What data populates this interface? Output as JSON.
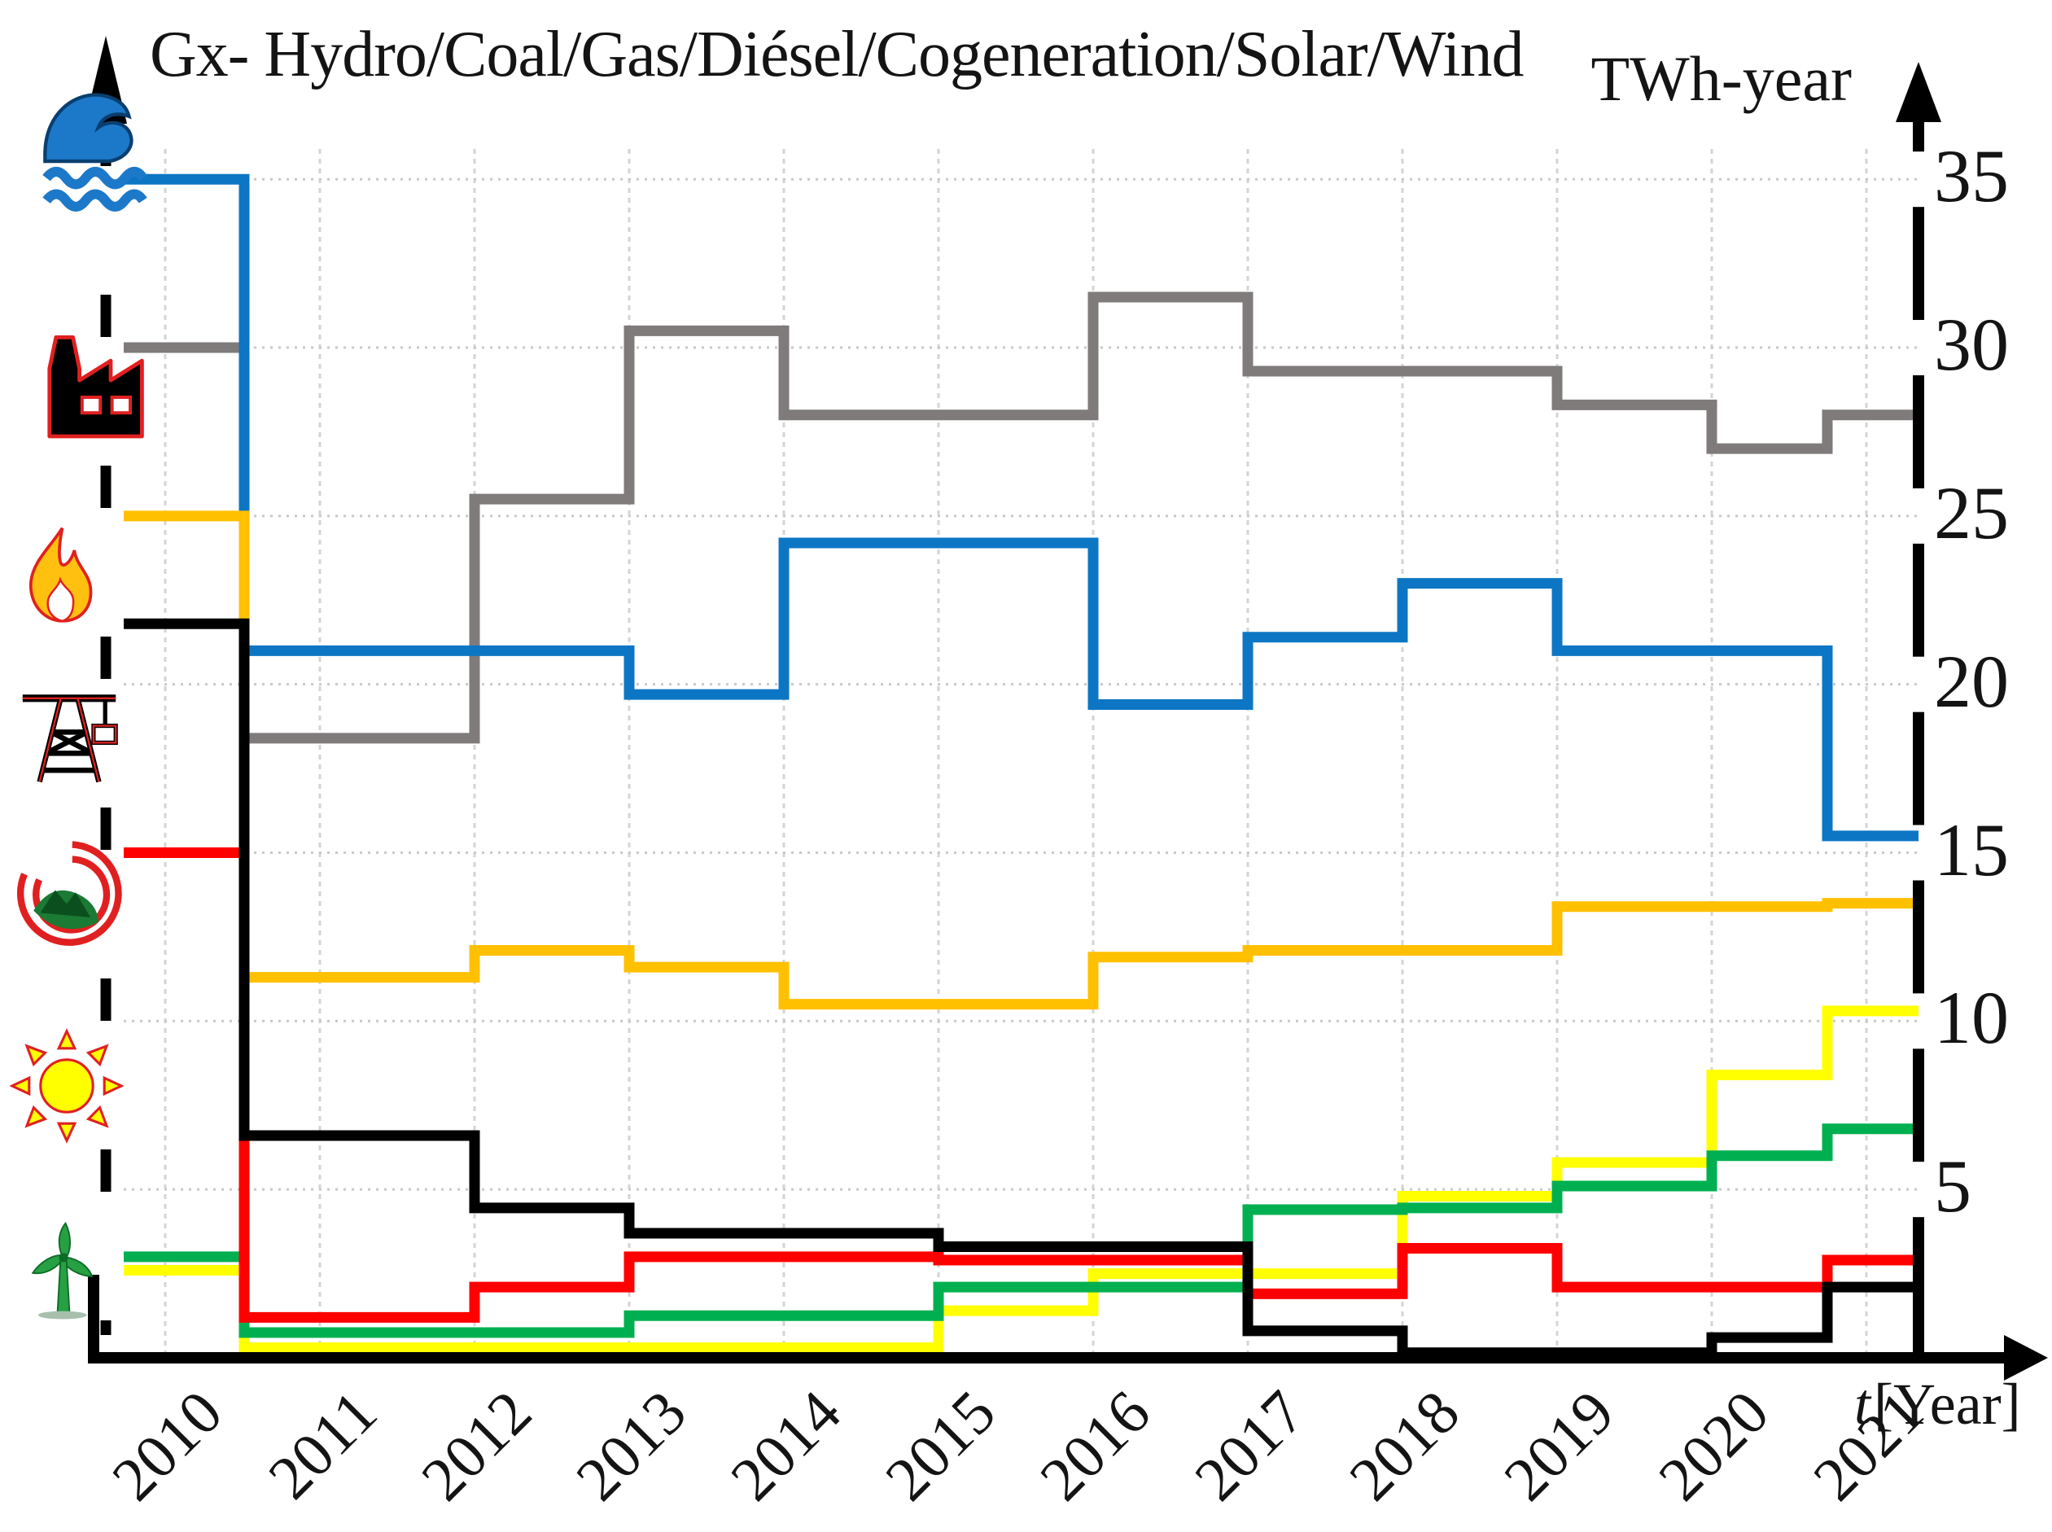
{
  "header": {
    "title": "Gx- Hydro/Coal/Gas/Diésel/Cogeneration/Solar/Wind",
    "y_unit": "TWh-year"
  },
  "x_axis": {
    "label_var": "t",
    "label_unit": "[Year]",
    "years": [
      "2010",
      "2011",
      "2012",
      "2013",
      "2014",
      "2015",
      "2016",
      "2017",
      "2018",
      "2019",
      "2020",
      "2021"
    ]
  },
  "y_axis": {
    "tick_labels": [
      "35",
      "30",
      "25",
      "20",
      "15",
      "10",
      "5"
    ]
  },
  "legend_icons": [
    {
      "name": "wave-icon",
      "series": "Hydro"
    },
    {
      "name": "factory-icon",
      "series": "Coal"
    },
    {
      "name": "flame-icon",
      "series": "Gas"
    },
    {
      "name": "derrick-icon",
      "series": "Diésel"
    },
    {
      "name": "cogeneration-icon",
      "series": "Cogeneration"
    },
    {
      "name": "sun-icon",
      "series": "Solar"
    },
    {
      "name": "wind-turbine-icon",
      "series": "Wind"
    }
  ],
  "chart_data": {
    "type": "line",
    "step": true,
    "title": "Gx- Hydro/Coal/Gas/Diésel/Cogeneration/Solar/Wind",
    "xlabel": "t[Year]",
    "ylabel": "TWh-year",
    "categories": [
      2010,
      2011,
      2012,
      2013,
      2014,
      2015,
      2016,
      2017,
      2018,
      2019,
      2020,
      2021
    ],
    "ylim": [
      0,
      36.5
    ],
    "yticks": [
      5,
      10,
      15,
      20,
      25,
      30,
      35
    ],
    "grid": true,
    "legend_position": "left-icon-column",
    "series": [
      {
        "name": "Hydro",
        "color": "#0d76c4",
        "values": [
          35.0,
          21.0,
          21.0,
          19.7,
          24.2,
          24.2,
          19.4,
          21.4,
          23.0,
          21.0,
          21.0,
          15.5
        ]
      },
      {
        "name": "Coal",
        "color": "#7f7b7b",
        "values": [
          30.0,
          18.4,
          25.5,
          30.5,
          28.0,
          28.0,
          31.5,
          29.3,
          29.3,
          28.3,
          27.0,
          28.0
        ]
      },
      {
        "name": "Gas",
        "color": "#ffc000",
        "values": [
          25.0,
          11.3,
          12.1,
          11.6,
          10.5,
          10.5,
          11.9,
          12.1,
          12.1,
          13.4,
          13.4,
          13.5
        ]
      },
      {
        "name": "Diésel",
        "color": "#000000",
        "values": [
          21.8,
          6.6,
          4.45,
          3.7,
          3.7,
          3.3,
          3.3,
          0.8,
          0.15,
          0.15,
          0.6,
          2.1
        ]
      },
      {
        "name": "Cogeneration",
        "color": "#ff0000",
        "values": [
          15.0,
          1.2,
          2.1,
          3.0,
          3.0,
          2.9,
          2.9,
          1.9,
          3.25,
          2.1,
          2.1,
          2.9
        ]
      },
      {
        "name": "Solar",
        "color": "#ffff00",
        "values": [
          2.6,
          0.3,
          0.3,
          0.3,
          0.3,
          1.4,
          2.5,
          2.5,
          4.8,
          5.8,
          8.4,
          10.3
        ]
      },
      {
        "name": "Wind",
        "color": "#00b050",
        "values": [
          3.0,
          0.75,
          0.75,
          1.25,
          1.25,
          2.1,
          2.1,
          4.4,
          4.45,
          5.1,
          6.0,
          6.8
        ]
      }
    ]
  }
}
